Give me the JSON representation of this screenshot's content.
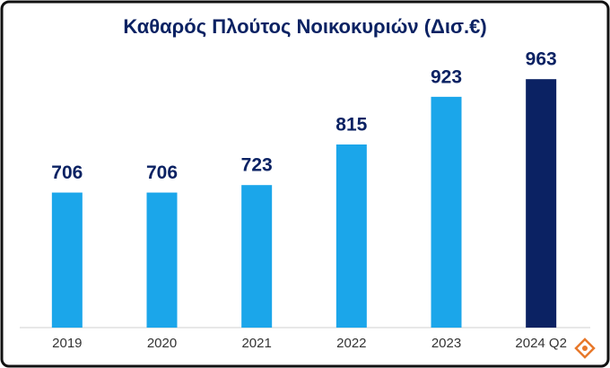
{
  "chart_data": {
    "type": "bar",
    "title": "Καθαρός Πλούτος Νοικοκυριών (Δισ.€)",
    "categories": [
      "2019",
      "2020",
      "2021",
      "2022",
      "2023",
      "2024 Q2"
    ],
    "values": [
      706,
      706,
      723,
      815,
      923,
      963
    ],
    "colors": [
      "#1ba6ea",
      "#1ba6ea",
      "#1ba6ea",
      "#1ba6ea",
      "#1ba6ea",
      "#0b2263"
    ],
    "ylim": [
      400,
      1000
    ]
  }
}
